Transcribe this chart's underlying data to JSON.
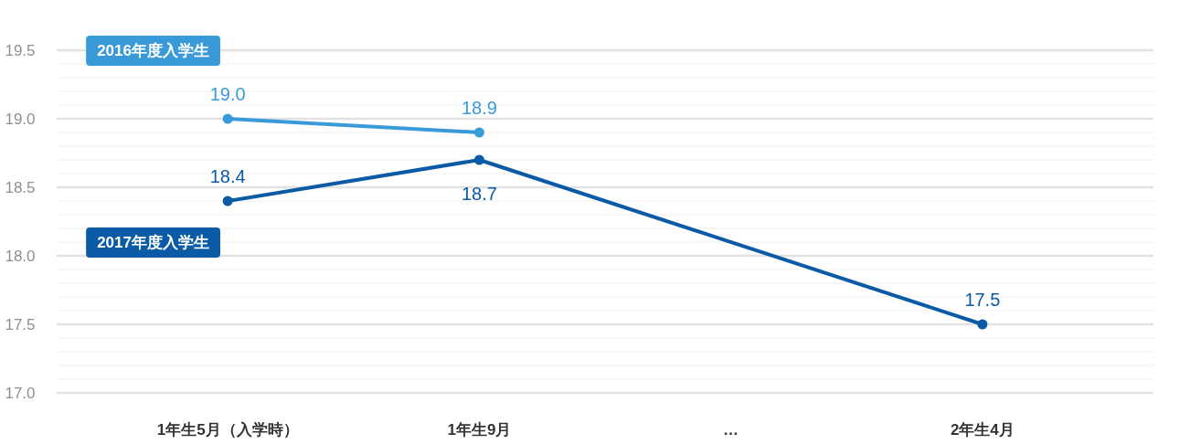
{
  "chart_data": {
    "type": "line",
    "categories": [
      "1年生5月（入学時）",
      "1年生9月",
      "…",
      "2年生4月"
    ],
    "series": [
      {
        "name": "2016年度入学生",
        "color": "#3a9ad9",
        "values": [
          19.0,
          18.9,
          null,
          null
        ],
        "value_labels": [
          "19.0",
          "18.9",
          null,
          null
        ]
      },
      {
        "name": "2017年度入学生",
        "color": "#0b5aa5",
        "values": [
          18.4,
          18.7,
          null,
          17.5
        ],
        "value_labels": [
          "18.4",
          "18.7",
          null,
          "17.5"
        ]
      }
    ],
    "ylim": [
      17.0,
      19.5
    ],
    "yticks": [
      {
        "value": 17.0,
        "label": "17.0"
      },
      {
        "value": 17.1,
        "label": null
      },
      {
        "value": 17.2,
        "label": null
      },
      {
        "value": 17.3,
        "label": null
      },
      {
        "value": 17.4,
        "label": null
      },
      17.5,
      {
        "value": 17.6,
        "label": null
      },
      {
        "value": 17.7,
        "label": null
      },
      {
        "value": 17.8,
        "label": null
      },
      {
        "value": 17.9,
        "label": null
      },
      {
        "value": 18.0,
        "label": "18.0"
      },
      {
        "value": 18.1,
        "label": null
      },
      {
        "value": 18.2,
        "label": null
      },
      {
        "value": 18.3,
        "label": null
      },
      {
        "value": 18.4,
        "label": null
      },
      18.5,
      {
        "value": 18.6,
        "label": null
      },
      {
        "value": 18.7,
        "label": null
      },
      {
        "value": 18.8,
        "label": null
      },
      {
        "value": 18.9,
        "label": null
      },
      {
        "value": 19.0,
        "label": "19.0"
      },
      {
        "value": 19.1,
        "label": null
      },
      {
        "value": 19.2,
        "label": null
      },
      {
        "value": 19.3,
        "label": null
      },
      {
        "value": 19.4,
        "label": null
      },
      19.5
    ],
    "grid": "y",
    "marker": "circle",
    "line_style": "solid"
  }
}
